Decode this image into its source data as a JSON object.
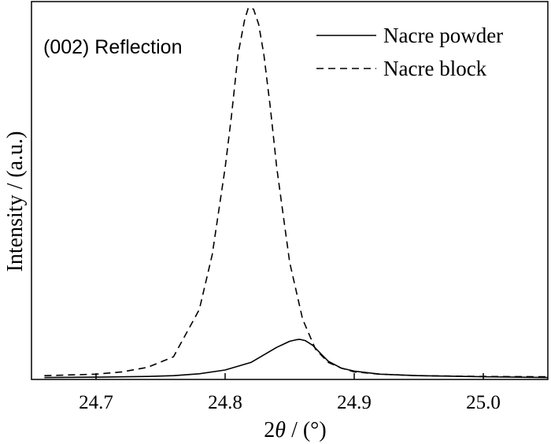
{
  "chart_data": {
    "type": "line",
    "title": "",
    "annotation": "(002) Reflection",
    "xlabel_prefix": "2",
    "xlabel_theta": "θ",
    "xlabel_suffix": " / (°)",
    "ylabel": "Intensity / (a.u.)",
    "xlim": [
      24.65,
      25.05
    ],
    "ylim": [
      0,
      1.0
    ],
    "y_ticks_shown": false,
    "grid": false,
    "legend_position": "top-right",
    "x_ticks": [
      {
        "value": 24.7,
        "label": "24.7"
      },
      {
        "value": 24.8,
        "label": "24.8"
      },
      {
        "value": 24.9,
        "label": "24.9"
      },
      {
        "value": 25.0,
        "label": "25.0"
      }
    ],
    "series": [
      {
        "name": "Nacre powder",
        "style": "solid",
        "color": "#000000",
        "x": [
          24.66,
          24.7,
          24.74,
          24.76,
          24.78,
          24.8,
          24.82,
          24.83,
          24.84,
          24.845,
          24.85,
          24.855,
          24.858,
          24.862,
          24.868,
          24.875,
          24.88,
          24.89,
          24.9,
          24.92,
          24.95,
          25.0,
          25.05
        ],
        "y": [
          0.005,
          0.006,
          0.008,
          0.01,
          0.015,
          0.025,
          0.045,
          0.065,
          0.085,
          0.093,
          0.101,
          0.105,
          0.106,
          0.103,
          0.09,
          0.065,
          0.048,
          0.03,
          0.022,
          0.014,
          0.01,
          0.007,
          0.005
        ]
      },
      {
        "name": "Nacre block",
        "style": "dashed",
        "color": "#000000",
        "x": [
          24.66,
          24.7,
          24.72,
          24.74,
          24.76,
          24.78,
          24.79,
          24.8,
          24.805,
          24.81,
          24.815,
          24.818,
          24.822,
          24.826,
          24.83,
          24.835,
          24.84,
          24.85,
          24.86,
          24.87,
          24.88,
          24.89,
          24.9,
          24.92,
          24.95,
          25.0,
          25.05
        ],
        "y": [
          0.01,
          0.014,
          0.02,
          0.032,
          0.06,
          0.185,
          0.33,
          0.56,
          0.7,
          0.86,
          0.95,
          0.984,
          0.98,
          0.94,
          0.86,
          0.72,
          0.56,
          0.31,
          0.16,
          0.08,
          0.045,
          0.03,
          0.02,
          0.014,
          0.01,
          0.008,
          0.007
        ]
      }
    ]
  }
}
